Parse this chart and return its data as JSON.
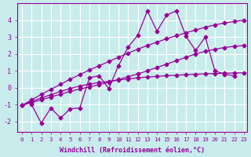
{
  "xlabel": "Windchill (Refroidissement éolien,°C)",
  "bg_color": "#c8ecec",
  "grid_color": "#ffffff",
  "line_color": "#990099",
  "xmin": -0.5,
  "xmax": 23.3,
  "ymin": -2.6,
  "ymax": 5.0,
  "yticks": [
    -2,
    -1,
    0,
    1,
    2,
    3,
    4
  ],
  "xticks": [
    0,
    1,
    2,
    3,
    4,
    5,
    6,
    7,
    8,
    9,
    10,
    11,
    12,
    13,
    14,
    15,
    16,
    17,
    18,
    19,
    20,
    21,
    22,
    23
  ],
  "series": [
    {
      "x": [
        1,
        2,
        3,
        4,
        5,
        6,
        7,
        8,
        9,
        10,
        11,
        12,
        13,
        14,
        15,
        16,
        17,
        18,
        19,
        20,
        21,
        22
      ],
      "y": [
        -1.0,
        -2.1,
        -1.2,
        -1.8,
        -1.25,
        -1.2,
        0.6,
        0.7,
        -0.05,
        1.3,
        2.4,
        3.1,
        4.55,
        3.35,
        4.3,
        4.55,
        3.05,
        2.2,
        3.0,
        1.0,
        0.8,
        0.7
      ]
    },
    {
      "x": [
        0,
        1,
        2,
        3,
        4,
        5,
        6,
        7,
        8,
        9,
        10,
        11,
        12,
        13,
        14,
        15,
        16,
        17,
        18,
        19,
        20,
        21,
        22,
        23
      ],
      "y": [
        -1.05,
        -0.82,
        -0.6,
        -0.42,
        -0.22,
        -0.05,
        0.1,
        0.22,
        0.3,
        0.38,
        0.46,
        0.52,
        0.58,
        0.63,
        0.67,
        0.71,
        0.74,
        0.77,
        0.8,
        0.82,
        0.84,
        0.86,
        0.87,
        0.88
      ]
    },
    {
      "x": [
        0,
        1,
        2,
        3,
        4,
        5,
        6,
        7,
        8,
        9,
        10,
        11,
        12,
        13,
        14,
        15,
        16,
        17,
        18,
        19,
        20,
        21,
        22,
        23
      ],
      "y": [
        -1.05,
        -0.88,
        -0.72,
        -0.55,
        -0.38,
        -0.22,
        -0.08,
        0.05,
        0.18,
        0.32,
        0.48,
        0.65,
        0.82,
        1.0,
        1.2,
        1.4,
        1.6,
        1.8,
        2.0,
        2.15,
        2.28,
        2.38,
        2.45,
        2.5
      ]
    },
    {
      "x": [
        0,
        1,
        2,
        3,
        4,
        5,
        6,
        7,
        8,
        9,
        10,
        11,
        12,
        13,
        14,
        15,
        16,
        17,
        18,
        19,
        20,
        21,
        22,
        23
      ],
      "y": [
        -1.05,
        -0.72,
        -0.4,
        -0.1,
        0.2,
        0.5,
        0.78,
        1.05,
        1.3,
        1.55,
        1.8,
        2.05,
        2.28,
        2.5,
        2.7,
        2.9,
        3.08,
        3.25,
        3.42,
        3.58,
        3.72,
        3.83,
        3.92,
        4.0
      ]
    }
  ]
}
